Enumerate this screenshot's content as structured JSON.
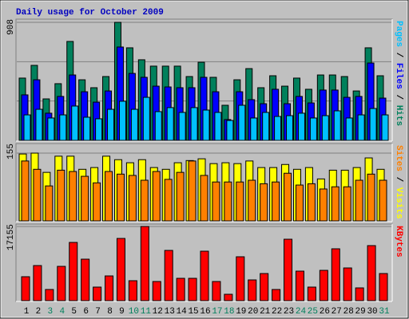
{
  "chart_data": [
    {
      "type": "bar",
      "title": "Daily usage for October 2009",
      "title_color": "#0000c0",
      "legend_separator": "/",
      "series": [
        {
          "name": "Hits",
          "color": "#00805c",
          "values": [
            479,
            577,
            319,
            436,
            761,
            466,
            405,
            491,
            908,
            712,
            620,
            571,
            571,
            571,
            491,
            601,
            485,
            270,
            466,
            552,
            405,
            497,
            417,
            479,
            393,
            503,
            503,
            491,
            380,
            712,
            497
          ]
        },
        {
          "name": "Files",
          "color": "#0000ff",
          "values": [
            350,
            466,
            209,
            338,
            503,
            374,
            294,
            380,
            718,
            515,
            485,
            417,
            411,
            405,
            405,
            485,
            374,
            160,
            374,
            313,
            282,
            393,
            282,
            338,
            288,
            387,
            387,
            331,
            338,
            595,
            325
          ]
        },
        {
          "name": "Pages",
          "color": "#00c0ff",
          "values": [
            196,
            239,
            172,
            196,
            264,
            178,
            166,
            239,
            301,
            239,
            331,
            221,
            252,
            215,
            252,
            233,
            215,
            153,
            270,
            172,
            215,
            184,
            190,
            209,
            172,
            190,
            227,
            172,
            196,
            245,
            196
          ]
        }
      ],
      "ylim": [
        0,
        908
      ],
      "yticks": [
        908
      ],
      "grid": true
    },
    {
      "type": "bar",
      "legend_separator": "/",
      "series": [
        {
          "name": "Visits",
          "color": "#ffff00",
          "values": [
            153,
            155,
            111,
            148,
            148,
            118,
            122,
            148,
            140,
            133,
            140,
            122,
            118,
            133,
            138,
            142,
            131,
            133,
            131,
            137,
            122,
            122,
            129,
            118,
            122,
            96,
            116,
            116,
            122,
            144,
            118
          ]
        },
        {
          "name": "Sites",
          "color": "#ff8000",
          "values": [
            137,
            118,
            80,
            116,
            113,
            102,
            87,
            113,
            107,
            104,
            93,
            113,
            95,
            111,
            137,
            104,
            89,
            89,
            89,
            93,
            85,
            89,
            109,
            82,
            85,
            73,
            78,
            78,
            93,
            107,
            93
          ]
        }
      ],
      "ylim": [
        0,
        155
      ],
      "yticks": [
        155
      ]
    },
    {
      "type": "bar",
      "categories": [
        "1",
        "2",
        "3",
        "4",
        "5",
        "6",
        "7",
        "8",
        "9",
        "10",
        "11",
        "12",
        "13",
        "14",
        "15",
        "16",
        "17",
        "18",
        "19",
        "20",
        "21",
        "22",
        "23",
        "24",
        "25",
        "26",
        "27",
        "28",
        "29",
        "30",
        "31"
      ],
      "category_colors": [
        "#000000",
        "#000000",
        "#00805c",
        "#00805c",
        "#000000",
        "#000000",
        "#000000",
        "#000000",
        "#000000",
        "#00805c",
        "#00805c",
        "#000000",
        "#000000",
        "#000000",
        "#000000",
        "#000000",
        "#00805c",
        "#00805c",
        "#000000",
        "#000000",
        "#000000",
        "#000000",
        "#000000",
        "#00805c",
        "#00805c",
        "#000000",
        "#000000",
        "#000000",
        "#000000",
        "#000000",
        "#00805c"
      ],
      "series": [
        {
          "name": "KBytes",
          "color": "#ff0000",
          "values": [
            5535,
            8118,
            2583,
            7934,
            13469,
            9594,
            3137,
            5720,
            14391,
            4613,
            17155,
            4428,
            11624,
            5166,
            5166,
            11439,
            4428,
            1476,
            10148,
            4797,
            6273,
            2583,
            14206,
            6827,
            3137,
            7011,
            11993,
            7565,
            2952,
            12731,
            6273
          ]
        }
      ],
      "ylim": [
        0,
        17155
      ],
      "yticks": [
        17155
      ]
    }
  ]
}
